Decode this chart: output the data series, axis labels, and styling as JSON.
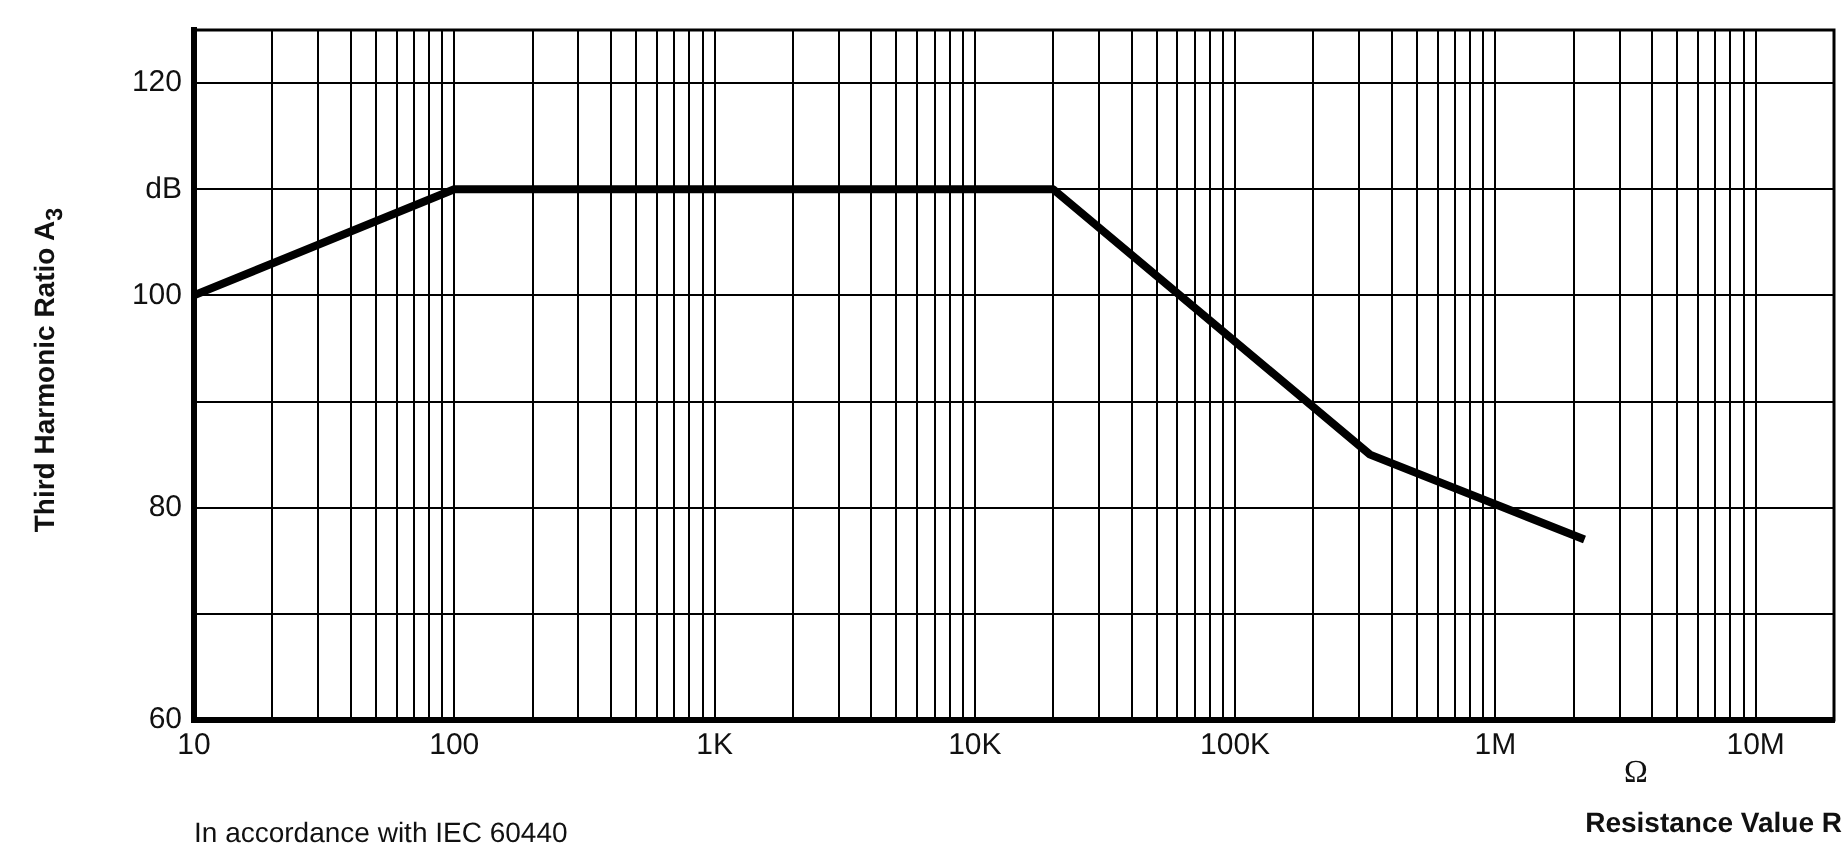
{
  "chart_data": {
    "type": "line",
    "ylabel": "Third Harmonic Ratio A$_{3}$",
    "xlabel": "Resistance Value R",
    "annotations": [
      "Ω",
      "In accordance with IEC 60440"
    ],
    "log": "x",
    "grid": true,
    "legend": false,
    "marker": "none",
    "line_style": "solid",
    "xlim": [
      10,
      20000000
    ],
    "ylim": [
      60,
      125
    ],
    "xticks": [
      {
        "value": 10,
        "label": "10"
      },
      {
        "value": 20,
        "label": null
      },
      {
        "value": 30,
        "label": null
      },
      {
        "value": 40,
        "label": null
      },
      {
        "value": 50,
        "label": null
      },
      {
        "value": 60,
        "label": null
      },
      {
        "value": 70,
        "label": null
      },
      {
        "value": 80,
        "label": null
      },
      {
        "value": 90,
        "label": null
      },
      {
        "value": 100,
        "label": "100"
      },
      {
        "value": 200,
        "label": null
      },
      {
        "value": 300,
        "label": null
      },
      {
        "value": 400,
        "label": null
      },
      {
        "value": 500,
        "label": null
      },
      {
        "value": 600,
        "label": null
      },
      {
        "value": 700,
        "label": null
      },
      {
        "value": 800,
        "label": null
      },
      {
        "value": 900,
        "label": null
      },
      {
        "value": 1000,
        "label": "1K"
      },
      {
        "value": 2000,
        "label": null
      },
      {
        "value": 3000,
        "label": null
      },
      {
        "value": 4000,
        "label": null
      },
      {
        "value": 5000,
        "label": null
      },
      {
        "value": 6000,
        "label": null
      },
      {
        "value": 7000,
        "label": null
      },
      {
        "value": 8000,
        "label": null
      },
      {
        "value": 9000,
        "label": null
      },
      {
        "value": 10000,
        "label": "10K"
      },
      {
        "value": 20000,
        "label": null
      },
      {
        "value": 30000,
        "label": null
      },
      {
        "value": 40000,
        "label": null
      },
      {
        "value": 50000,
        "label": null
      },
      {
        "value": 60000,
        "label": null
      },
      {
        "value": 70000,
        "label": null
      },
      {
        "value": 80000,
        "label": null
      },
      {
        "value": 90000,
        "label": null
      },
      {
        "value": 100000,
        "label": "100K"
      },
      {
        "value": 200000,
        "label": null
      },
      {
        "value": 300000,
        "label": null
      },
      {
        "value": 400000,
        "label": null
      },
      {
        "value": 500000,
        "label": null
      },
      {
        "value": 600000,
        "label": null
      },
      {
        "value": 700000,
        "label": null
      },
      {
        "value": 800000,
        "label": null
      },
      {
        "value": 900000,
        "label": null
      },
      {
        "value": 1000000,
        "label": "1M"
      },
      {
        "value": 2000000,
        "label": null
      },
      {
        "value": 3000000,
        "label": null
      },
      {
        "value": 4000000,
        "label": null
      },
      {
        "value": 5000000,
        "label": null
      },
      {
        "value": 6000000,
        "label": null
      },
      {
        "value": 7000000,
        "label": null
      },
      {
        "value": 8000000,
        "label": null
      },
      {
        "value": 9000000,
        "label": null
      },
      {
        "value": 10000000,
        "label": "10M"
      },
      {
        "value": 20000000,
        "label": null
      }
    ],
    "yticks": [
      60,
      {
        "value": 70,
        "label": null
      },
      80,
      {
        "value": 90,
        "label": null
      },
      100,
      {
        "value": 110,
        "label": "dB"
      },
      120
    ],
    "series": [
      {
        "color": "#000000",
        "x": [
          10,
          100,
          20000,
          330000,
          2200000
        ],
        "values": [
          100,
          110,
          110,
          85,
          77
        ]
      }
    ]
  }
}
